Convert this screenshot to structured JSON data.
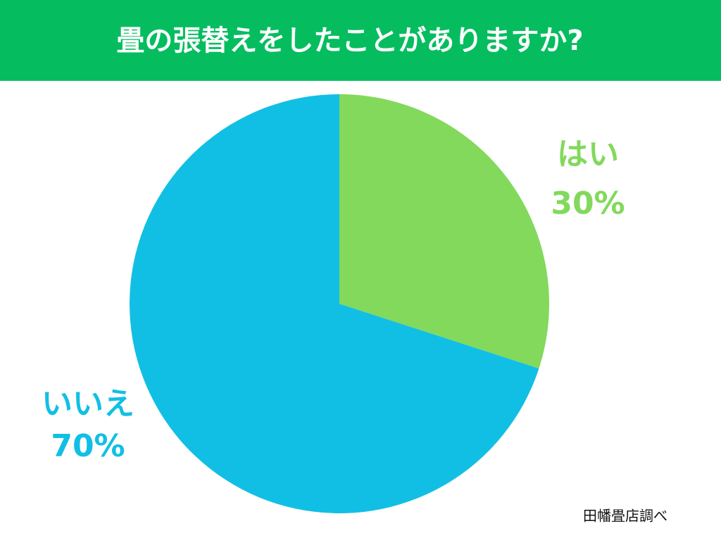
{
  "chart_data": {
    "type": "pie",
    "title": "畳の張替えをしたことがありますか?",
    "categories": [
      "はい",
      "いいえ"
    ],
    "values": [
      30,
      70
    ],
    "value_labels": [
      "30%",
      "70%"
    ],
    "colors": [
      "#82d95c",
      "#12bfe4"
    ],
    "source": "田幡畳店調べ"
  }
}
